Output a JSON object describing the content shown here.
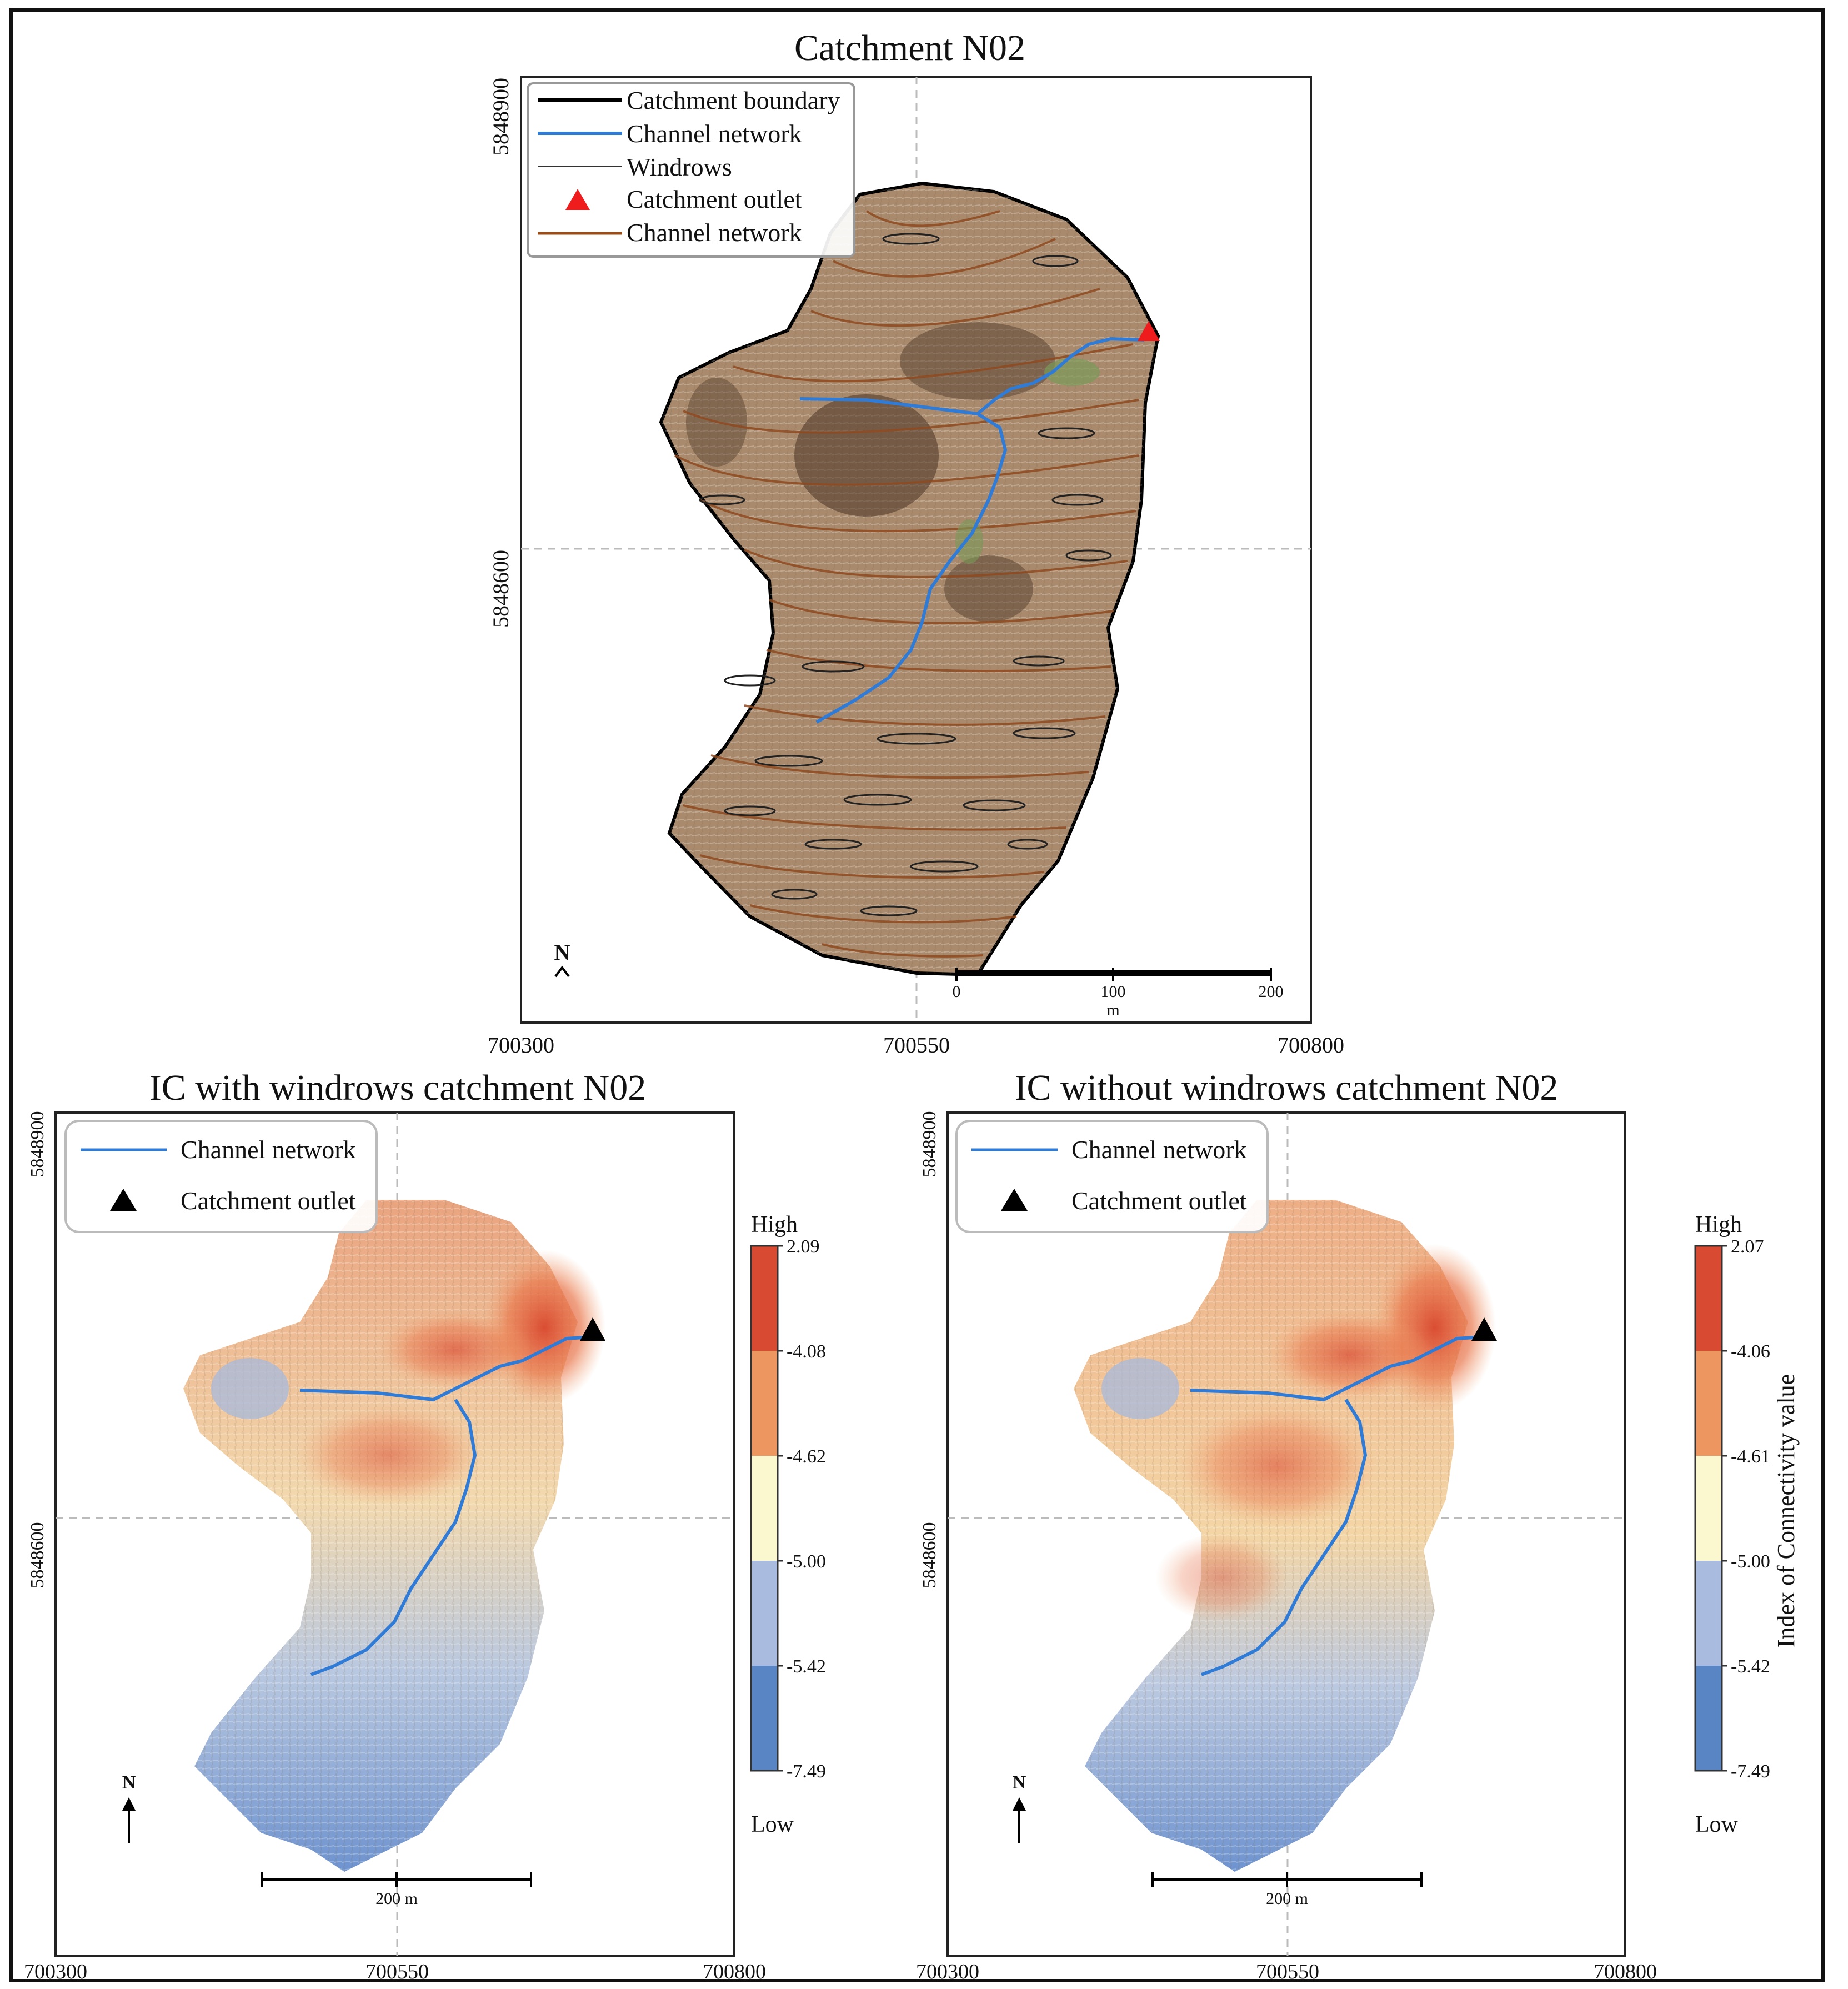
{
  "panels": {
    "top": {
      "title": "Catchment N02",
      "legend": [
        "Catchment boundary",
        "Channel network",
        "Windrows",
        "Catchment outlet",
        "Channel network"
      ],
      "legend_colors": [
        "#000000",
        "#2f7bd6",
        "#333333",
        "#ee1c1c",
        "#9a4b1a"
      ],
      "x_ticks": [
        "700300",
        "700550",
        "700800"
      ],
      "y_ticks": [
        "5848900",
        "5848600"
      ],
      "north": "N",
      "scale": {
        "labels": [
          "0",
          "100",
          "200"
        ],
        "unit": "m"
      }
    },
    "bottom_left": {
      "title": "IC with windrows catchment N02",
      "legend": [
        "Channel network",
        "Catchment outlet"
      ],
      "x_ticks": [
        "700300",
        "700550",
        "700800"
      ],
      "y_ticks": [
        "5848900",
        "5848600"
      ],
      "north": "N",
      "scale_label": "200 m",
      "colorbar": {
        "high": "High",
        "low": "Low",
        "ticks": [
          "2.09",
          "-4.08",
          "-4.62",
          "-5.00",
          "-5.42",
          "-7.49"
        ],
        "colors": [
          "#d94a33",
          "#ee9660",
          "#fbf7cf",
          "#a9bce0",
          "#5a85c5"
        ]
      }
    },
    "bottom_right": {
      "title": "IC without windrows catchment N02",
      "legend": [
        "Channel network",
        "Catchment outlet"
      ],
      "x_ticks": [
        "700300",
        "700550",
        "700800"
      ],
      "y_ticks": [
        "5848900",
        "5848600"
      ],
      "north": "N",
      "scale_label": "200 m",
      "colorbar": {
        "high": "High",
        "low": "Low",
        "ticks": [
          "2.07",
          "-4.06",
          "-4.61",
          "-5.00",
          "-5.42",
          "-7.49"
        ],
        "colors": [
          "#d94a33",
          "#ee9660",
          "#fbf7cf",
          "#a9bce0",
          "#5a85c5"
        ],
        "label": "Index of Connectivity value"
      }
    }
  },
  "colors": {
    "terrain": "#a98a6c",
    "contour": "#8f4a20",
    "channel": "#2f7bd6"
  }
}
